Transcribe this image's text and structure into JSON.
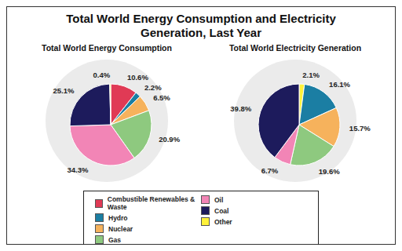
{
  "title": "Total World Energy Consumption and Electricity Generation, Last Year",
  "chart_data": [
    {
      "type": "pie",
      "title": "Total World Energy Consumption",
      "categories": [
        "Combustible Renewables & Waste",
        "Hydro",
        "Nuclear",
        "Gas",
        "Oil",
        "Coal",
        "Other"
      ],
      "values": [
        10.6,
        2.2,
        6.5,
        20.9,
        34.3,
        25.1,
        0.4
      ],
      "value_labels": [
        "10.6%",
        "2.2%",
        "6.5%",
        "20.9%",
        "34.3%",
        "25.1%",
        "0.4%"
      ],
      "colors": [
        "#e03a55",
        "#1b7ea3",
        "#f6b25c",
        "#8ec97f",
        "#f285b6",
        "#1d1b5c",
        "#fff23a"
      ],
      "data_labels": true,
      "legend": "bottom"
    },
    {
      "type": "pie",
      "title": "Total World Electricity Generation",
      "categories": [
        "Other",
        "Hydro",
        "Nuclear",
        "Gas",
        "Oil",
        "Coal"
      ],
      "values": [
        2.1,
        16.1,
        15.7,
        19.6,
        6.7,
        39.8
      ],
      "value_labels": [
        "2.1%",
        "16.1%",
        "15.7%",
        "19.6%",
        "6.7%",
        "39.8%"
      ],
      "colors": [
        "#fff23a",
        "#1b7ea3",
        "#f6b25c",
        "#8ec97f",
        "#f285b6",
        "#1d1b5c"
      ],
      "data_labels": true
    }
  ]
}
